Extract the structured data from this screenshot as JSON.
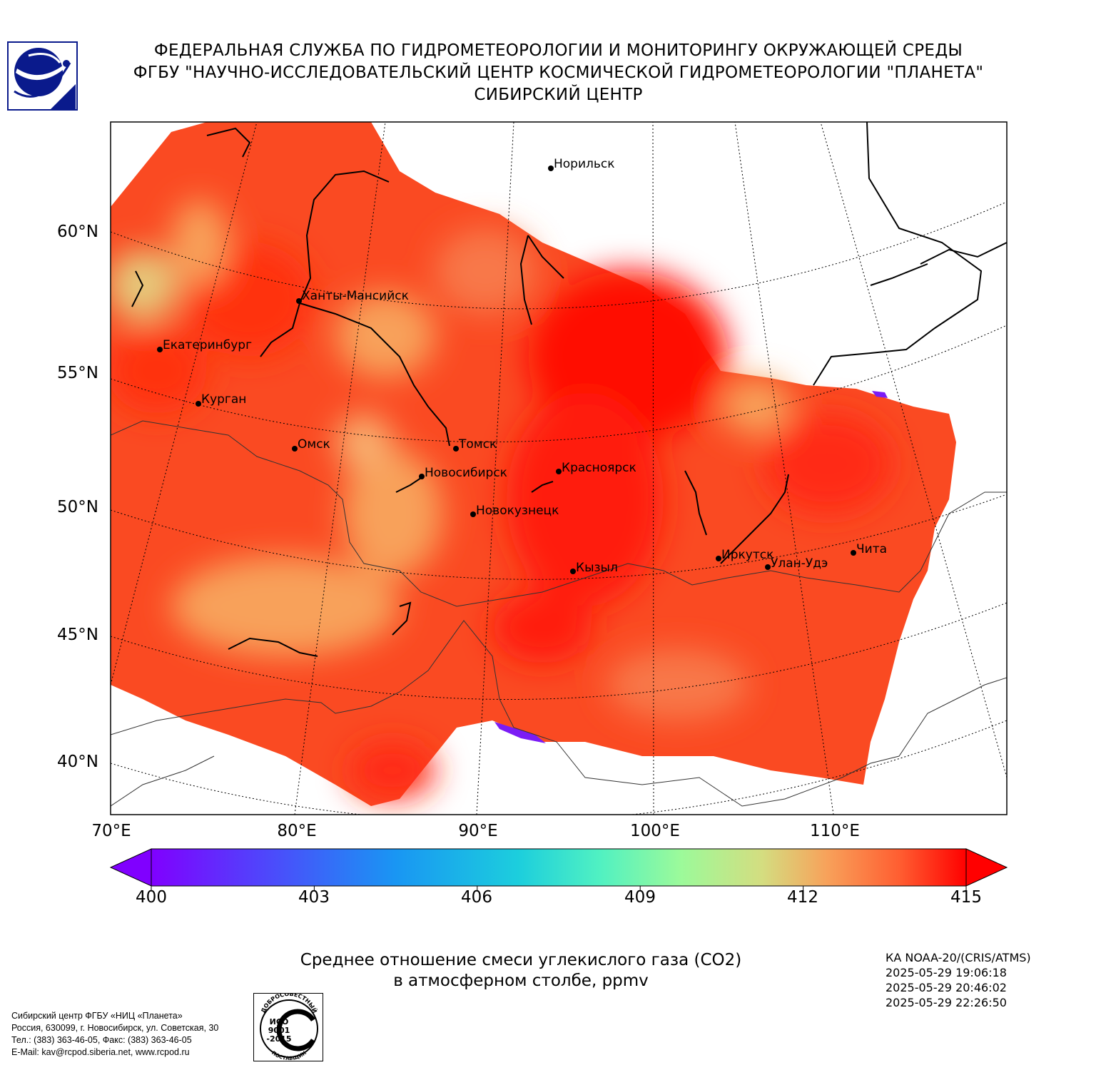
{
  "header": {
    "line1": "ФЕДЕРАЛЬНАЯ СЛУЖБА ПО ГИДРОМЕТЕОРОЛОГИИ И МОНИТОРИНГУ ОКРУЖАЮЩЕЙ СРЕДЫ",
    "line2": "ФГБУ \"НАУЧНО-ИССЛЕДОВАТЕЛЬСКИЙ ЦЕНТР КОСМИЧЕСКОЙ ГИДРОМЕТЕОРОЛОГИИ \"ПЛАНЕТА\"",
    "line3": "СИБИРСКИЙ ЦЕНТР"
  },
  "map": {
    "lat_labels": [
      "60°N",
      "55°N",
      "50°N",
      "45°N",
      "40°N"
    ],
    "lon_labels": [
      "70°E",
      "80°E",
      "90°E",
      "100°E",
      "110°E"
    ],
    "cities": [
      "Норильск",
      "Ханты-Мансийск",
      "Екатеринбург",
      "Курган",
      "Омск",
      "Томск",
      "Новосибирск",
      "Красноярск",
      "Новокузнецк",
      "Иркутск",
      "Улан-Удэ",
      "Чита",
      "Кызыл"
    ],
    "field_colors": [
      "#ff1a0a",
      "#f8a15a",
      "#e6c87a"
    ]
  },
  "colorbar": {
    "ticks": [
      "400",
      "403",
      "406",
      "409",
      "412",
      "415"
    ],
    "min": 400,
    "max": 415,
    "colormap": "rainbow",
    "extend": "both"
  },
  "caption": {
    "line1": "Среднее отношение смеси углекислого газа (CO2)",
    "line2": "в атмосферном столбе, ppmv"
  },
  "satellite": {
    "name": "КА NOAA-20/(CRIS/ATMS)",
    "times": [
      "2025-05-29 19:06:18",
      "2025-05-29 20:46:02",
      "2025-05-29 22:26:50"
    ]
  },
  "footer": {
    "lines": [
      "Сибирский центр ФГБУ «НИЦ «Планета»",
      "Россия, 630099, г. Новосибирск, ул. Советская, 30",
      "Тел.: (383) 363-46-05, Факс: (383) 363-46-05",
      "E-Mail: kav@rcpod.siberia.net, www.rcpod.ru"
    ]
  },
  "iso_badge": {
    "top_text": "ДОБРОСОВЕСТНЫЙ",
    "mid_text": [
      "ИСО",
      "9001",
      "-2015"
    ],
    "bottom_text": "ПОСТАВЩИК"
  }
}
